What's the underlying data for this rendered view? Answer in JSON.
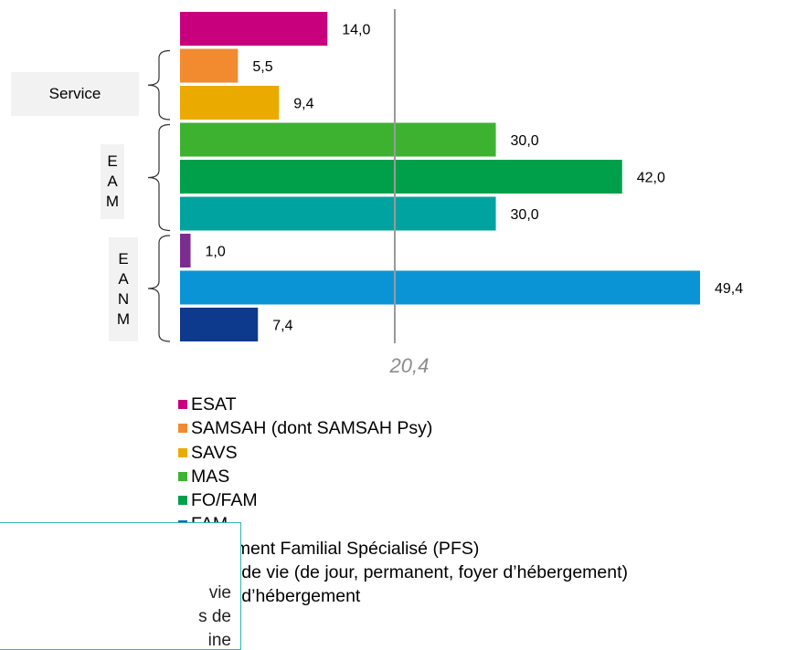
{
  "chart_data": {
    "type": "bar",
    "orientation": "horizontal",
    "categories": [
      "ESAT",
      "SAMSAH (dont SAMSAH Psy)",
      "SAVS",
      "MAS",
      "FO/FAM",
      "FAM",
      "Placement Familial Spécialisé (PFS)",
      "Foyer de vie (de jour, permanent, foyer d’hébergement)",
      "Foyer d’hébergement"
    ],
    "values": [
      14.0,
      5.5,
      9.4,
      30.0,
      42.0,
      30.0,
      1.0,
      49.4,
      7.4
    ],
    "value_labels": [
      "14,0",
      "5,5",
      "9,4",
      "30,0",
      "42,0",
      "30,0",
      "1,0",
      "49,4",
      "7,4"
    ],
    "colors": [
      "#c8007d",
      "#f28a30",
      "#eaaa00",
      "#3db230",
      "#00a04b",
      "#00a3a0",
      "#7a2d8f",
      "#0a94d6",
      "#0d3a8c"
    ],
    "legend_colors": [
      "#c8007d",
      "#f28a30",
      "#eaaa00",
      "#3db230",
      "#00a04b",
      "#0066cc",
      "#7a2d8f",
      "#0a94d6",
      "#0d3a8c"
    ],
    "reference_line": {
      "value": 20.4,
      "label": "20,4"
    },
    "xlim": [
      0,
      58
    ],
    "grid": false,
    "legend_position": "bottom",
    "groups": [
      {
        "label": "Service",
        "letters": [],
        "bars": [
          1,
          2
        ]
      },
      {
        "label": "EAM",
        "letters": [
          "E",
          "A",
          "M"
        ],
        "bars": [
          3,
          5
        ]
      },
      {
        "label": "EANM",
        "letters": [
          "E",
          "A",
          "N",
          "M"
        ],
        "bars": [
          6,
          8
        ]
      }
    ]
  },
  "callout": {
    "lines": [
      "vie",
      "s de",
      "ine"
    ]
  }
}
